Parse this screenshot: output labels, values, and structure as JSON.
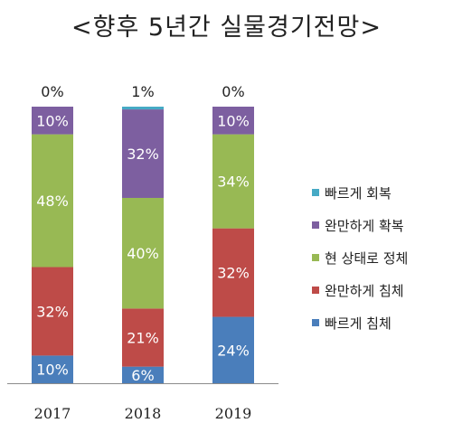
{
  "chart_data": {
    "type": "bar",
    "stacked": true,
    "normalized_percent": true,
    "title": "<향후 5년간 실물경기전망>",
    "xlabel": "",
    "ylabel": "",
    "ylim": [
      0,
      100
    ],
    "grid": false,
    "legend_position": "right",
    "categories": [
      "2017",
      "2018",
      "2019"
    ],
    "series": [
      {
        "name": "빠르게 침체",
        "color": "#4a7ebb",
        "values": [
          10,
          6,
          24
        ],
        "labels": [
          "10%",
          "6%",
          "24%"
        ]
      },
      {
        "name": "완만하게 침체",
        "color": "#be4b48",
        "values": [
          32,
          21,
          32
        ],
        "labels": [
          "32%",
          "21%",
          "32%"
        ]
      },
      {
        "name": "현 상태로 정체",
        "color": "#98b954",
        "values": [
          48,
          40,
          34
        ],
        "labels": [
          "48%",
          "40%",
          "34%"
        ]
      },
      {
        "name": "완만하게 확복",
        "color": "#7d5fa0",
        "values": [
          10,
          32,
          10
        ],
        "labels": [
          "10%",
          "32%",
          "10%"
        ]
      },
      {
        "name": "빠르게 회복",
        "color": "#46aac5",
        "values": [
          0,
          1,
          0
        ],
        "labels": [
          "0%",
          "1%",
          "0%"
        ]
      }
    ],
    "legend_order": [
      4,
      3,
      2,
      1,
      0
    ]
  }
}
